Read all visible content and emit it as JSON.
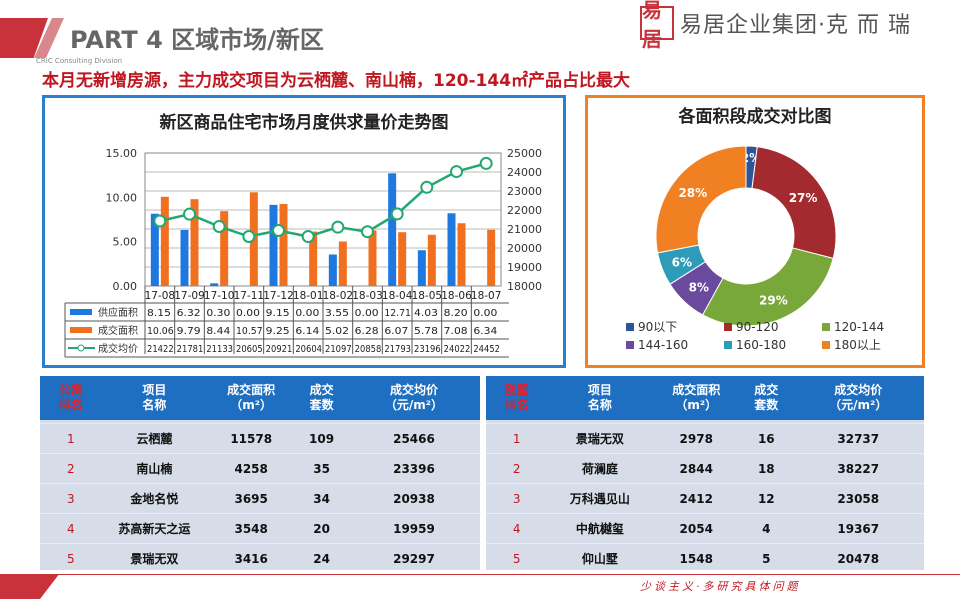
{
  "header": {
    "part": "PART 4",
    "section": "区域市场/新区",
    "division": "CRIC Consulting Division",
    "logo_seal": "易居",
    "logo_text": "易居企业集团·克 而 瑞"
  },
  "headline": "本月无新增房源，主力成交项目为云栖麓、南山楠，120-144㎡产品占比最大",
  "chart_data": [
    {
      "type": "bar+line",
      "title": "新区商品住宅市场月度供求量价走势图",
      "categories": [
        "17-08",
        "17-09",
        "17-10",
        "17-11",
        "17-12",
        "18-01",
        "18-02",
        "18-03",
        "18-04",
        "18-05",
        "18-06",
        "18-07"
      ],
      "series": [
        {
          "name": "供应面积",
          "type": "bar",
          "axis": "left",
          "color": "#1f77e0",
          "values": [
            8.15,
            6.32,
            0.3,
            0.0,
            9.15,
            0.0,
            3.55,
            0.0,
            12.71,
            4.03,
            8.2,
            0.0
          ],
          "labels": [
            "8.15",
            "6.32",
            "0.30",
            "0.00",
            "9.15",
            "0.00",
            "3.55",
            "0.00",
            "12.71",
            "4.03",
            "8.20",
            "0.00"
          ]
        },
        {
          "name": "成交面积",
          "type": "bar",
          "axis": "left",
          "color": "#f07020",
          "values": [
            10.06,
            9.79,
            8.44,
            10.57,
            9.25,
            6.14,
            5.02,
            6.28,
            6.07,
            5.78,
            7.08,
            6.34
          ],
          "labels": [
            "10.06",
            "9.79",
            "8.44",
            "10.57",
            "9.25",
            "6.14",
            "5.02",
            "6.28",
            "6.07",
            "5.78",
            "7.08",
            "6.34"
          ]
        },
        {
          "name": "成交均价",
          "type": "line",
          "axis": "right",
          "color": "#22a870",
          "values": [
            21422,
            21781,
            21133,
            20605,
            20921,
            20604,
            21097,
            20858,
            21793,
            23196,
            24022,
            24452
          ],
          "labels": [
            "21422",
            "21781",
            "21133",
            "20605",
            "20921",
            "20604",
            "21097",
            "20858",
            "21793",
            "23196",
            "24022",
            "24452"
          ]
        }
      ],
      "yleft": {
        "ylim": [
          0,
          15
        ],
        "ticks": [
          "0.00",
          "5.00",
          "10.00",
          "15.00"
        ]
      },
      "yright": {
        "ylim": [
          18000,
          25000
        ],
        "ticks": [
          "18000",
          "19000",
          "20000",
          "21000",
          "22000",
          "23000",
          "24000",
          "25000"
        ]
      },
      "grid": true,
      "legend": "data-table"
    },
    {
      "type": "pie",
      "title": "各面积段成交对比图",
      "donut": true,
      "categories": [
        "90以下",
        "90-120",
        "120-144",
        "144-160",
        "160-180",
        "180以上"
      ],
      "values": [
        2,
        27,
        29,
        8,
        6,
        28
      ],
      "labels": [
        "2%",
        "27%",
        "29%",
        "8%",
        "6%",
        "28%"
      ],
      "colors": [
        "#2e5597",
        "#a32a2e",
        "#78a83a",
        "#6a4a9c",
        "#2e9bb8",
        "#f08022"
      ],
      "legend": "bottom"
    }
  ],
  "tables": [
    {
      "rank_header": [
        "公寓",
        "排名"
      ],
      "headers": [
        [
          "项目",
          "名称"
        ],
        [
          "成交面积",
          "（m²）"
        ],
        [
          "成交",
          "套数"
        ],
        [
          "成交均价",
          "（元/m²）"
        ]
      ],
      "rows": [
        [
          "1",
          "云栖麓",
          "11578",
          "109",
          "25466"
        ],
        [
          "2",
          "南山楠",
          "4258",
          "35",
          "23396"
        ],
        [
          "3",
          "金地名悦",
          "3695",
          "34",
          "20938"
        ],
        [
          "4",
          "苏高新天之运",
          "3548",
          "20",
          "19959"
        ],
        [
          "5",
          "景瑞无双",
          "3416",
          "24",
          "29297"
        ]
      ]
    },
    {
      "rank_header": [
        "别墅",
        "排名"
      ],
      "headers": [
        [
          "项目",
          "名称"
        ],
        [
          "成交面积",
          "（m²）"
        ],
        [
          "成交",
          "套数"
        ],
        [
          "成交均价",
          "（元/m²）"
        ]
      ],
      "rows": [
        [
          "1",
          "景瑞无双",
          "2978",
          "16",
          "32737"
        ],
        [
          "2",
          "荷澜庭",
          "2844",
          "18",
          "38227"
        ],
        [
          "3",
          "万科遇见山",
          "2412",
          "12",
          "23058"
        ],
        [
          "4",
          "中航樾玺",
          "2054",
          "4",
          "19367"
        ],
        [
          "5",
          "仰山墅",
          "1548",
          "5",
          "20478"
        ]
      ]
    }
  ],
  "footer": {
    "motto": "少谈主义·多研究具体问题"
  }
}
